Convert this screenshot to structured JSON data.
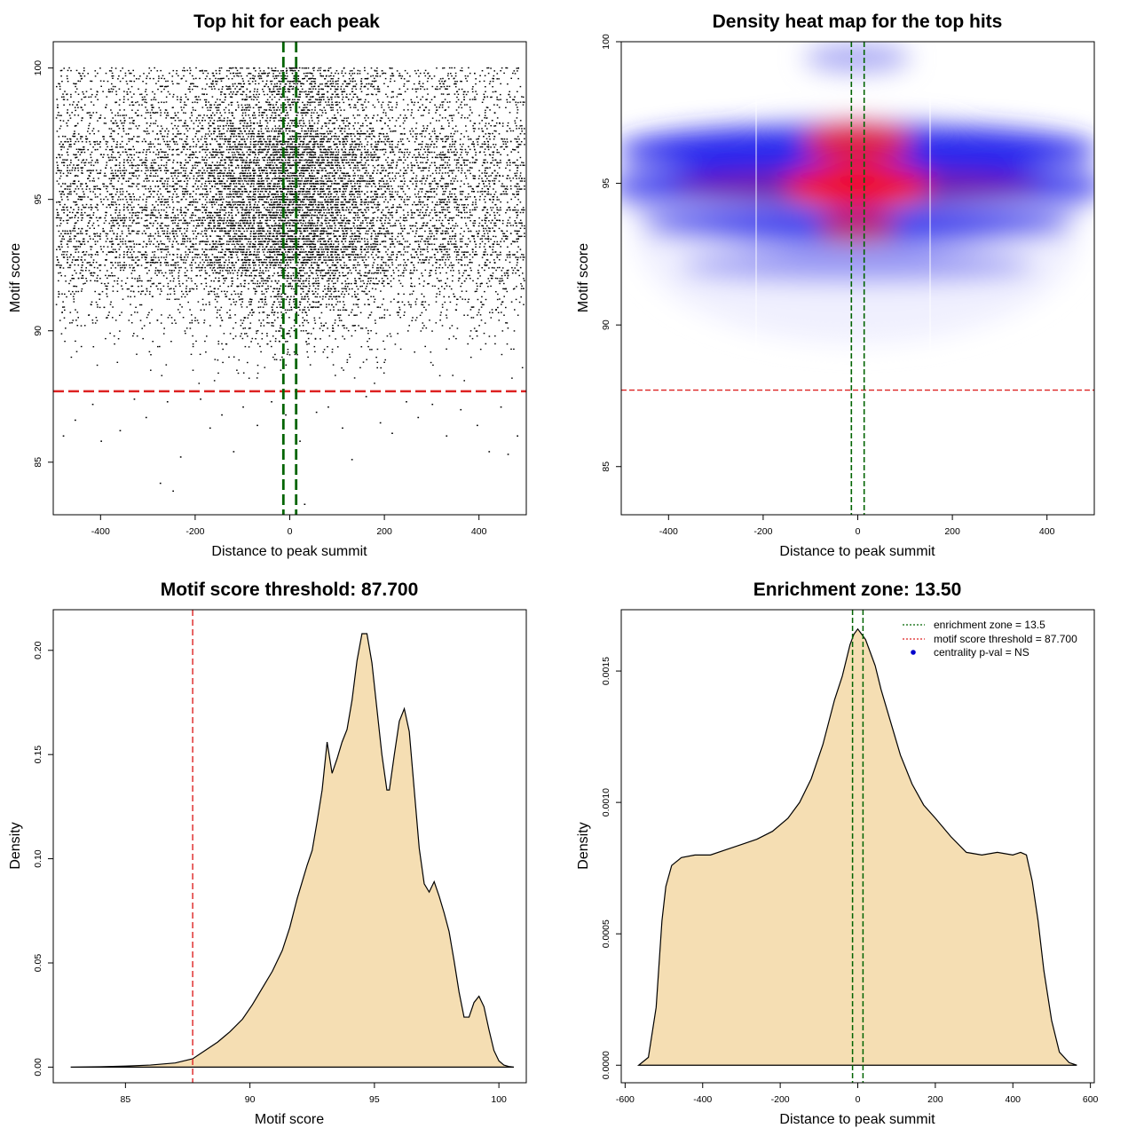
{
  "colors": {
    "fill": "#F5DEB3",
    "threshold_line": "#DD2222",
    "zone_line": "#006400",
    "legend_point": "#0000CC",
    "points": "#000000"
  },
  "chart_data": [
    {
      "id": "scatter",
      "type": "scatter",
      "title": "Top hit for each peak",
      "xlabel": "Distance to peak summit",
      "ylabel": "Motif score",
      "xlim": [
        -500,
        500
      ],
      "ylim": [
        83,
        101
      ],
      "xticks": [
        -400,
        -200,
        0,
        200,
        400
      ],
      "yticks": [
        85,
        90,
        95,
        100
      ],
      "threshold_y": 87.7,
      "zone_x": [
        -13.5,
        13.5
      ],
      "outliers": [
        [
          -480,
          86.0
        ],
        [
          -455,
          86.6
        ],
        [
          -418,
          87.2
        ],
        [
          -400,
          85.8
        ],
        [
          -360,
          86.2
        ],
        [
          -330,
          87.4
        ],
        [
          -305,
          86.7
        ],
        [
          -275,
          84.2
        ],
        [
          -260,
          87.3
        ],
        [
          -248,
          83.9
        ],
        [
          -232,
          85.2
        ],
        [
          -190,
          87.4
        ],
        [
          -170,
          86.3
        ],
        [
          -145,
          86.8
        ],
        [
          -120,
          85.4
        ],
        [
          -100,
          87.1
        ],
        [
          -70,
          86.4
        ],
        [
          -40,
          87.3
        ],
        [
          -10,
          86.8
        ],
        [
          20,
          85.8
        ],
        [
          30,
          83.4
        ],
        [
          55,
          86.9
        ],
        [
          80,
          87.1
        ],
        [
          110,
          86.3
        ],
        [
          130,
          85.1
        ],
        [
          160,
          87.5
        ],
        [
          190,
          86.5
        ],
        [
          215,
          86.1
        ],
        [
          245,
          87.3
        ],
        [
          270,
          86.7
        ],
        [
          300,
          87.2
        ],
        [
          330,
          86.0
        ],
        [
          360,
          87.0
        ],
        [
          395,
          86.4
        ],
        [
          420,
          85.4
        ],
        [
          445,
          87.1
        ],
        [
          460,
          85.3
        ],
        [
          480,
          86.0
        ]
      ]
    },
    {
      "id": "heatmap",
      "type": "heatmap",
      "title": "Density heat map for the top hits",
      "xlabel": "Distance to peak summit",
      "ylabel": "Motif score",
      "xlim": [
        -500,
        500
      ],
      "ylim": [
        83.3,
        100.0
      ],
      "xticks": [
        -400,
        -200,
        0,
        200,
        400
      ],
      "yticks": [
        85,
        90,
        95,
        100
      ],
      "threshold_y": 87.7,
      "zone_x": [
        -13.5,
        13.5
      ]
    },
    {
      "id": "score_density",
      "type": "area",
      "title": "Motif score threshold: 87.700",
      "xlabel": "Motif score",
      "ylabel": "Density",
      "xlim": [
        82.1,
        101.1
      ],
      "ylim": [
        -0.0075,
        0.2195
      ],
      "xticks": [
        85,
        90,
        95,
        100
      ],
      "yticks": [
        0.0,
        0.05,
        0.1,
        0.15,
        0.2
      ],
      "ytick_labels": [
        "0.00",
        "0.05",
        "0.10",
        "0.15",
        "0.20"
      ],
      "threshold_x": 87.7,
      "x": [
        82.8,
        84,
        85,
        86,
        87,
        87.7,
        88.2,
        88.7,
        89.2,
        89.7,
        90.1,
        90.5,
        90.9,
        91.3,
        91.6,
        91.9,
        92.1,
        92.3,
        92.5,
        92.7,
        92.9,
        93.1,
        93.3,
        93.5,
        93.7,
        93.9,
        94.1,
        94.3,
        94.5,
        94.7,
        94.9,
        95.1,
        95.3,
        95.5,
        95.6,
        95.8,
        96.0,
        96.2,
        96.4,
        96.6,
        96.8,
        97.0,
        97.2,
        97.4,
        97.6,
        97.8,
        98.0,
        98.2,
        98.4,
        98.6,
        98.8,
        99.0,
        99.2,
        99.4,
        99.6,
        99.8,
        100.0,
        100.2,
        100.4,
        100.6
      ],
      "y": [
        0.0,
        0.0002,
        0.0005,
        0.001,
        0.002,
        0.004,
        0.008,
        0.012,
        0.017,
        0.023,
        0.03,
        0.038,
        0.046,
        0.056,
        0.067,
        0.081,
        0.089,
        0.097,
        0.104,
        0.118,
        0.133,
        0.156,
        0.141,
        0.148,
        0.156,
        0.162,
        0.176,
        0.195,
        0.208,
        0.208,
        0.194,
        0.172,
        0.15,
        0.133,
        0.133,
        0.15,
        0.166,
        0.172,
        0.161,
        0.133,
        0.105,
        0.088,
        0.084,
        0.089,
        0.082,
        0.074,
        0.065,
        0.051,
        0.036,
        0.024,
        0.024,
        0.031,
        0.034,
        0.029,
        0.018,
        0.008,
        0.003,
        0.001,
        0.0003,
        0.0
      ]
    },
    {
      "id": "distance_density",
      "type": "area",
      "title": "Enrichment zone: 13.50",
      "xlabel": "Distance to peak summit",
      "ylabel": "Density",
      "xlim": [
        -610,
        610
      ],
      "ylim": [
        -6.67e-05,
        0.0017333
      ],
      "xticks": [
        -600,
        -400,
        -200,
        0,
        200,
        400,
        600
      ],
      "yticks": [
        0.0,
        0.0005,
        0.001,
        0.0015
      ],
      "ytick_labels": [
        "0.0000",
        "0.0005",
        "0.0010",
        "0.0015"
      ],
      "zone_x": [
        -13.5,
        13.5
      ],
      "x": [
        -565,
        -540,
        -520,
        -505,
        -495,
        -480,
        -455,
        -420,
        -380,
        -340,
        -300,
        -260,
        -220,
        -180,
        -150,
        -120,
        -90,
        -60,
        -40,
        -20,
        -10,
        0,
        10,
        20,
        30,
        45,
        60,
        80,
        110,
        140,
        170,
        200,
        240,
        280,
        320,
        360,
        400,
        420,
        435,
        450,
        465,
        480,
        500,
        520,
        545,
        565
      ],
      "y": [
        0.0,
        3e-05,
        0.00022,
        0.00055,
        0.00068,
        0.00076,
        0.00079,
        0.0008,
        0.0008,
        0.00082,
        0.00084,
        0.00086,
        0.00089,
        0.00094,
        0.001,
        0.00109,
        0.00122,
        0.00139,
        0.00148,
        0.0016,
        0.00164,
        0.00166,
        0.00164,
        0.00162,
        0.00158,
        0.00152,
        0.00143,
        0.00133,
        0.00118,
        0.00107,
        0.00099,
        0.00094,
        0.00087,
        0.00081,
        0.0008,
        0.00081,
        0.0008,
        0.00081,
        0.0008,
        0.0007,
        0.00055,
        0.00036,
        0.00017,
        5e-05,
        1e-05,
        0.0
      ],
      "legend": [
        {
          "label": "enrichment zone = 13.5",
          "kind": "line",
          "color": "#006400"
        },
        {
          "label": "motif score threshold = 87.700",
          "kind": "line",
          "color": "#DD2222"
        },
        {
          "label": "centrality p-val = NS",
          "kind": "point",
          "color": "#0000CC"
        }
      ]
    }
  ]
}
